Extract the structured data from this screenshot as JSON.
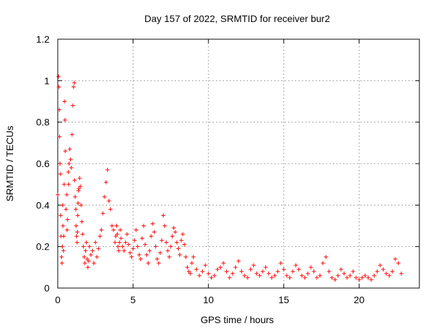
{
  "chart_data": {
    "type": "scatter",
    "title": "Day 157 of 2022, SRMTID for receiver bur2",
    "xlabel": "GPS time / hours",
    "ylabel": "SRMTID / TECUs",
    "xlim": [
      0,
      24
    ],
    "ylim": [
      0,
      1.2
    ],
    "xticks": [
      0,
      5,
      10,
      15,
      20
    ],
    "xtick_labels": [
      "0",
      "5",
      "10",
      "15",
      "20"
    ],
    "yticks": [
      0,
      0.2,
      0.4,
      0.6,
      0.8,
      1,
      1.2
    ],
    "ytick_labels": [
      "0",
      "0.2",
      "0.4",
      "0.6",
      "0.8",
      "1",
      "1.2"
    ],
    "grid": true,
    "marker": "+",
    "color": "#ff0000",
    "series": [
      {
        "name": "bur2",
        "x": [
          0.0,
          0.05,
          0.08,
          0.1,
          0.12,
          0.15,
          0.18,
          0.2,
          0.22,
          0.25,
          0.28,
          0.3,
          0.33,
          0.35,
          0.38,
          0.4,
          0.42,
          0.45,
          0.48,
          0.5,
          0.55,
          0.6,
          0.62,
          0.65,
          0.7,
          0.72,
          0.75,
          0.8,
          0.85,
          0.9,
          0.95,
          1.0,
          1.05,
          1.1,
          1.12,
          1.15,
          1.2,
          1.22,
          1.25,
          1.28,
          1.3,
          1.33,
          1.35,
          1.38,
          1.4,
          1.45,
          1.5,
          1.55,
          1.6,
          1.65,
          1.7,
          1.75,
          1.8,
          1.85,
          1.9,
          1.95,
          2.0,
          2.05,
          2.1,
          2.2,
          2.3,
          2.4,
          2.5,
          2.6,
          2.7,
          2.8,
          2.9,
          3.0,
          3.1,
          3.2,
          3.3,
          3.4,
          3.5,
          3.6,
          3.7,
          3.8,
          3.85,
          3.9,
          3.95,
          4.0,
          4.05,
          4.1,
          4.15,
          4.2,
          4.3,
          4.4,
          4.5,
          4.6,
          4.7,
          4.8,
          4.9,
          5.0,
          5.1,
          5.2,
          5.3,
          5.4,
          5.5,
          5.6,
          5.7,
          5.8,
          5.9,
          6.0,
          6.1,
          6.2,
          6.3,
          6.4,
          6.5,
          6.6,
          6.7,
          6.8,
          6.9,
          7.0,
          7.1,
          7.2,
          7.3,
          7.4,
          7.5,
          7.6,
          7.7,
          7.8,
          7.9,
          8.0,
          8.1,
          8.2,
          8.3,
          8.4,
          8.5,
          8.6,
          8.7,
          8.8,
          8.9,
          9.0,
          9.2,
          9.4,
          9.6,
          9.8,
          10.0,
          10.2,
          10.4,
          10.6,
          10.8,
          11.0,
          11.2,
          11.4,
          11.6,
          11.8,
          12.0,
          12.2,
          12.4,
          12.6,
          12.8,
          13.0,
          13.2,
          13.4,
          13.6,
          13.8,
          14.0,
          14.2,
          14.4,
          14.6,
          14.8,
          15.0,
          15.2,
          15.4,
          15.6,
          15.8,
          16.0,
          16.2,
          16.4,
          16.6,
          16.8,
          17.0,
          17.2,
          17.4,
          17.6,
          17.8,
          18.0,
          18.2,
          18.4,
          18.6,
          18.8,
          19.0,
          19.2,
          19.4,
          19.6,
          19.8,
          20.0,
          20.2,
          20.4,
          20.6,
          20.8,
          21.0,
          21.2,
          21.4,
          21.6,
          21.8,
          22.0,
          22.2,
          22.4,
          22.6,
          22.8
        ],
        "y": [
          0.45,
          1.02,
          0.97,
          0.86,
          0.73,
          0.6,
          0.55,
          0.35,
          0.25,
          0.15,
          0.12,
          0.2,
          0.4,
          0.3,
          0.18,
          0.25,
          0.5,
          0.9,
          0.81,
          0.66,
          0.38,
          0.45,
          0.28,
          0.33,
          0.56,
          0.5,
          0.6,
          0.67,
          0.62,
          0.58,
          0.74,
          0.88,
          0.97,
          0.99,
          0.52,
          0.44,
          0.38,
          0.3,
          0.25,
          0.22,
          0.27,
          0.35,
          0.41,
          0.47,
          0.48,
          0.53,
          0.49,
          0.4,
          0.32,
          0.26,
          0.2,
          0.15,
          0.12,
          0.18,
          0.22,
          0.14,
          0.1,
          0.13,
          0.2,
          0.16,
          0.18,
          0.12,
          0.22,
          0.15,
          0.19,
          0.25,
          0.28,
          0.36,
          0.44,
          0.51,
          0.57,
          0.42,
          0.38,
          0.3,
          0.28,
          0.22,
          0.25,
          0.3,
          0.26,
          0.2,
          0.18,
          0.22,
          0.28,
          0.24,
          0.2,
          0.18,
          0.22,
          0.26,
          0.21,
          0.17,
          0.15,
          0.19,
          0.23,
          0.28,
          0.2,
          0.16,
          0.14,
          0.24,
          0.3,
          0.21,
          0.16,
          0.12,
          0.18,
          0.25,
          0.31,
          0.27,
          0.2,
          0.14,
          0.12,
          0.17,
          0.23,
          0.35,
          0.3,
          0.22,
          0.18,
          0.15,
          0.2,
          0.25,
          0.29,
          0.27,
          0.22,
          0.19,
          0.16,
          0.23,
          0.26,
          0.21,
          0.15,
          0.1,
          0.08,
          0.07,
          0.12,
          0.15,
          0.09,
          0.06,
          0.08,
          0.11,
          0.07,
          0.05,
          0.06,
          0.09,
          0.1,
          0.12,
          0.08,
          0.05,
          0.07,
          0.1,
          0.13,
          0.08,
          0.06,
          0.05,
          0.09,
          0.11,
          0.07,
          0.06,
          0.08,
          0.1,
          0.07,
          0.05,
          0.06,
          0.08,
          0.12,
          0.09,
          0.06,
          0.05,
          0.08,
          0.11,
          0.09,
          0.06,
          0.05,
          0.07,
          0.1,
          0.08,
          0.05,
          0.06,
          0.12,
          0.15,
          0.08,
          0.05,
          0.04,
          0.06,
          0.09,
          0.07,
          0.05,
          0.06,
          0.08,
          0.05,
          0.04,
          0.05,
          0.06,
          0.05,
          0.04,
          0.06,
          0.08,
          0.11,
          0.09,
          0.07,
          0.06,
          0.08,
          0.14,
          0.12,
          0.07
        ]
      }
    ]
  }
}
